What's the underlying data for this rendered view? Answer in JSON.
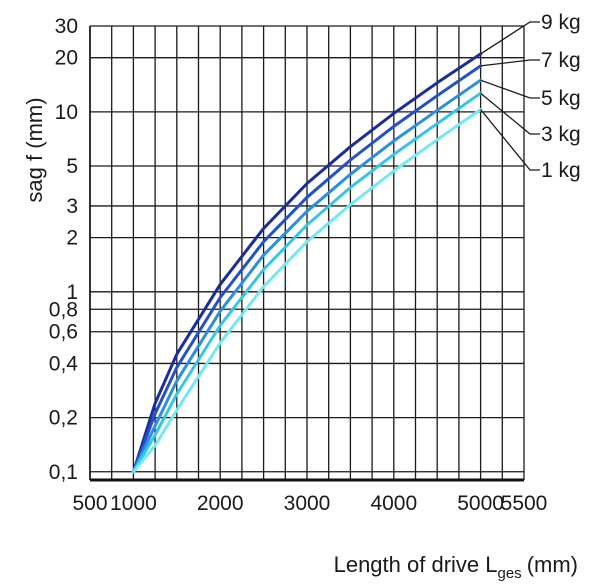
{
  "chart_data": {
    "type": "line",
    "xlabel": "Length of drive L",
    "xlabel_sub": "ges",
    "xlabel_unit": "(mm)",
    "ylabel": "sag f (mm)",
    "x_ticks": [
      "500",
      "1000",
      "2000",
      "3000",
      "4000",
      "5000",
      "5500"
    ],
    "x_tick_values": [
      500,
      1000,
      2000,
      3000,
      4000,
      5000,
      5500
    ],
    "y_ticks": [
      "0,1",
      "0,2",
      "0,4",
      "0,6",
      "0,8",
      "1",
      "2",
      "3",
      "5",
      "10",
      "20",
      "30"
    ],
    "y_tick_values": [
      0.1,
      0.2,
      0.4,
      0.6,
      0.8,
      1,
      2,
      3,
      5,
      10,
      20,
      30
    ],
    "xlim": [
      500,
      5500
    ],
    "ylim": [
      0.09,
      30
    ],
    "y_scale": "log",
    "grid": true,
    "legend_position": "right",
    "series": [
      {
        "name": "9 kg",
        "color": "#1a2d9a",
        "x": [
          1000,
          1250,
          1500,
          2000,
          2500,
          3000,
          3500,
          4000,
          4500,
          5000
        ],
        "y": [
          0.1,
          0.24,
          0.45,
          1.1,
          2.25,
          4.0,
          6.4,
          9.8,
          14.5,
          21.0
        ]
      },
      {
        "name": "7 kg",
        "color": "#2250c8",
        "x": [
          1000,
          1250,
          1500,
          2000,
          2500,
          3000,
          3500,
          4000,
          4500,
          5000
        ],
        "y": [
          0.1,
          0.21,
          0.38,
          0.93,
          1.9,
          3.35,
          5.4,
          8.3,
          12.3,
          18.0
        ]
      },
      {
        "name": "5 kg",
        "color": "#2a8fe0",
        "x": [
          1000,
          1250,
          1500,
          2000,
          2500,
          3000,
          3500,
          4000,
          4500,
          5000
        ],
        "y": [
          0.1,
          0.18,
          0.32,
          0.78,
          1.6,
          2.8,
          4.5,
          6.9,
          10.2,
          15.0
        ]
      },
      {
        "name": "3 kg",
        "color": "#35c6e6",
        "x": [
          1000,
          1250,
          1500,
          2000,
          2500,
          3000,
          3500,
          4000,
          4500,
          5000
        ],
        "y": [
          0.1,
          0.16,
          0.27,
          0.65,
          1.33,
          2.35,
          3.8,
          5.8,
          8.6,
          12.7
        ]
      },
      {
        "name": "1 kg",
        "color": "#72e8f2",
        "x": [
          1000,
          1250,
          1500,
          2000,
          2500,
          3000,
          3500,
          4000,
          4500,
          5000
        ],
        "y": [
          0.1,
          0.14,
          0.22,
          0.52,
          1.07,
          1.9,
          3.05,
          4.7,
          7.0,
          10.3
        ]
      }
    ]
  }
}
